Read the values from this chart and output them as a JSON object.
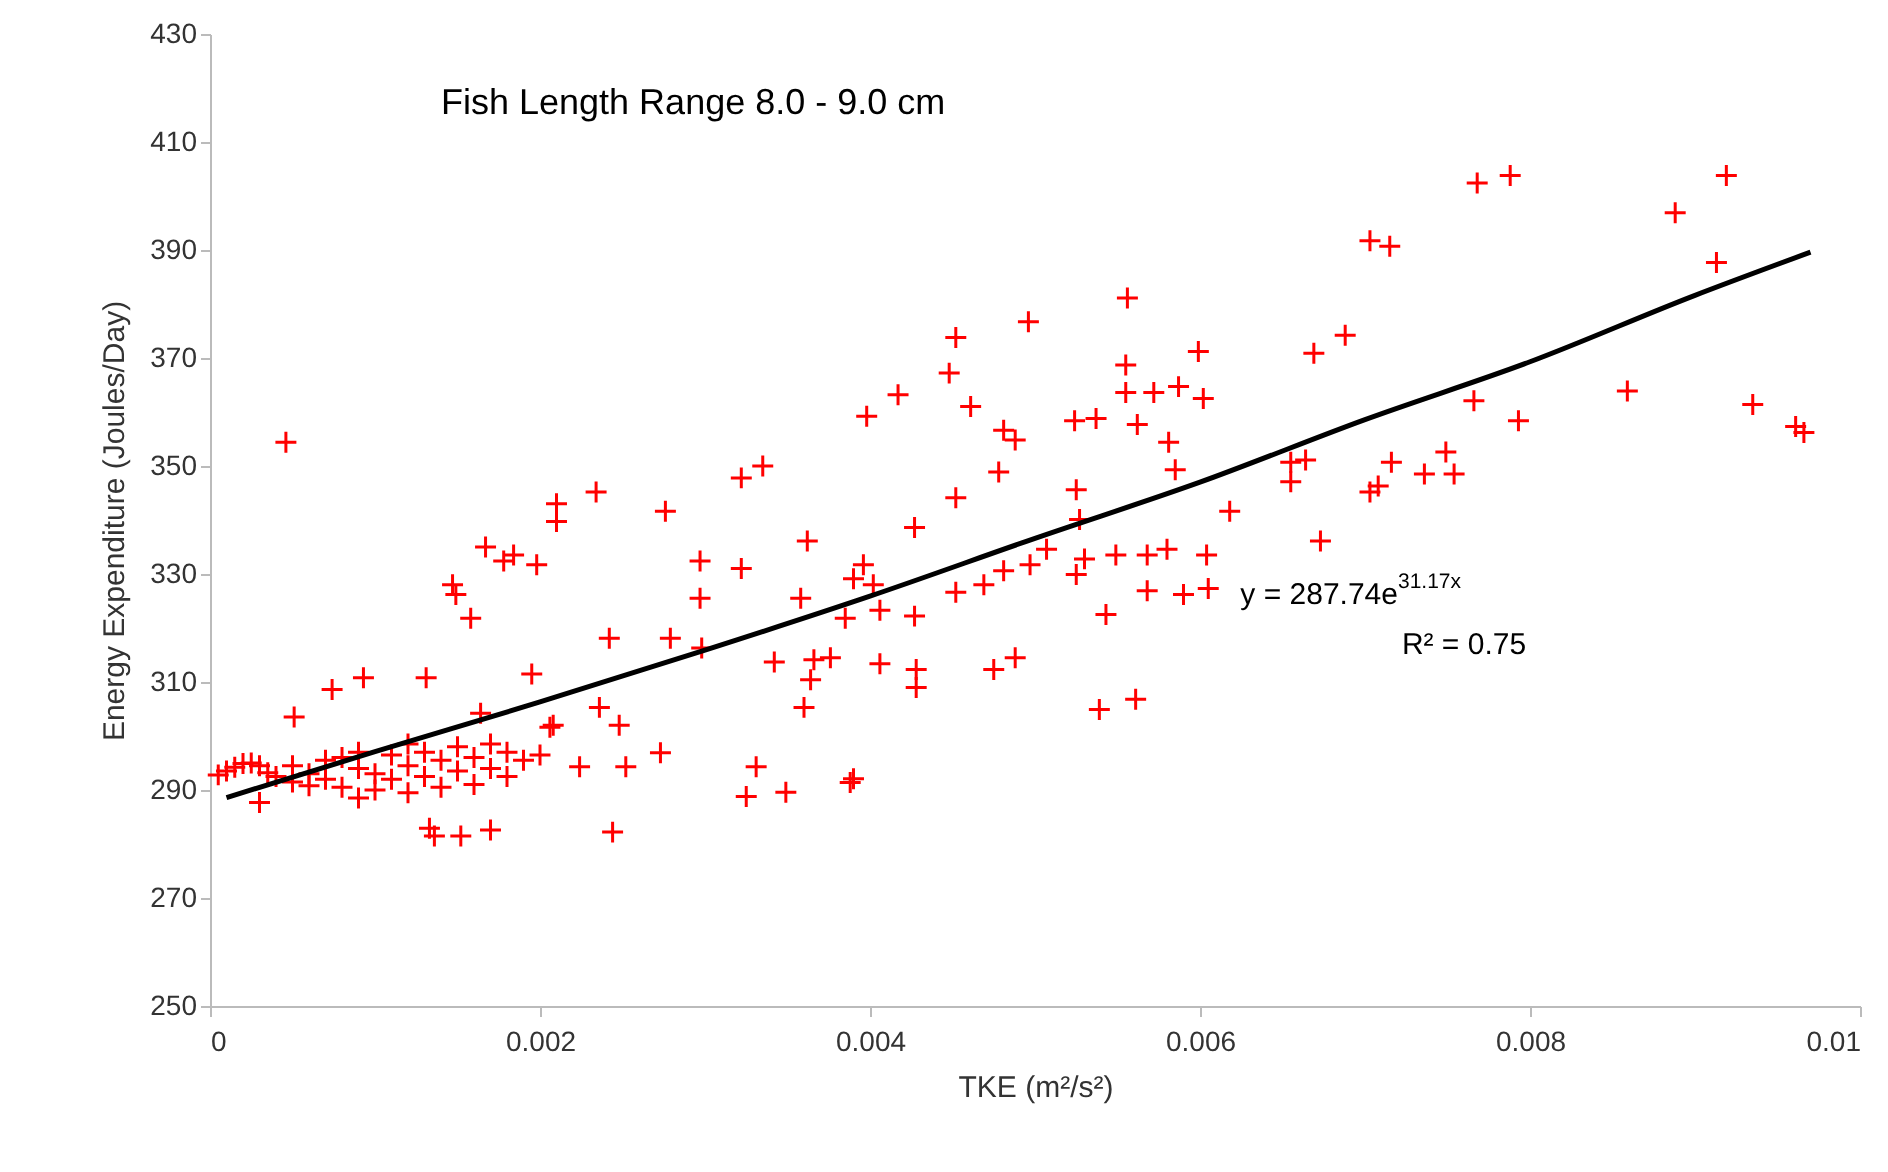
{
  "chart_data": {
    "type": "scatter",
    "xlabel": "TKE (m²/s²)",
    "ylabel": "Energy Expenditure (Joules/Day)",
    "xlim": [
      0,
      0.01
    ],
    "ylim": [
      250,
      430
    ],
    "xticks": [
      0,
      0.002,
      0.004,
      0.006,
      0.008,
      0.01
    ],
    "yticks": [
      250,
      270,
      290,
      310,
      330,
      350,
      370,
      390,
      410,
      430
    ],
    "grid": false,
    "marker": "cross",
    "annotations": [
      "Fish Length Range  8.0 - 9.0 cm",
      "y = 287.74e$^{31.17x}$",
      "R² = 0.75"
    ],
    "series": [
      {
        "color": "#ff0000",
        "x": [
          0.00768,
          0.00788,
          0.00703,
          0.00715,
          0.00888,
          0.00919,
          0.00913,
          0.00669,
          0.00688,
          0.00766,
          0.00793,
          0.00859,
          0.00935,
          0.00966,
          0.00961,
          0.00655,
          0.00655,
          0.00664,
          0.00716,
          0.00749,
          0.00736,
          0.00754,
          0.00703,
          0.00708,
          0.00556,
          0.00496,
          0.00452,
          0.00448,
          0.00417,
          0.00398,
          0.00461,
          0.00481,
          0.00488,
          0.00478,
          0.00452,
          0.00427,
          0.00525,
          0.00527,
          0.00524,
          0.00537,
          0.00555,
          0.00555,
          0.00572,
          0.00587,
          0.00602,
          0.00562,
          0.00581,
          0.00585,
          0.00599,
          0.00618,
          0.00673,
          0.00396,
          0.00385,
          0.00406,
          0.00427,
          0.00406,
          0.00428,
          0.00428,
          0.00475,
          0.00488,
          0.00452,
          0.00469,
          0.00481,
          0.00497,
          0.00507,
          0.00525,
          0.0053,
          0.00549,
          0.00568,
          0.0058,
          0.00604,
          0.00568,
          0.0059,
          0.00605,
          0.00543,
          0.00539,
          0.00561,
          0.0039,
          0.00335,
          0.00322,
          0.00234,
          0.00276,
          0.0021,
          0.0021,
          0.00167,
          0.00184,
          0.00198,
          0.00178,
          0.00147,
          0.00149,
          0.00158,
          0.00297,
          0.00322,
          0.00297,
          0.00358,
          0.00362,
          0.0039,
          0.00402,
          0.00242,
          0.00279,
          0.00298,
          0.00342,
          0.00366,
          0.00376,
          0.00364,
          0.0036,
          0.00093,
          0.00131,
          0.00195,
          0.00236,
          0.00248,
          0.00208,
          0.00164,
          0.00273,
          0.00224,
          0.00252,
          0.00331,
          0.00325,
          0.00349,
          0.00388,
          0.00244,
          0.0017,
          0.00152,
          0.00136,
          0.00133,
          0.00051,
          0.00074,
          0.00206,
          0.0003,
          0.00046,
          5e-05,
          0.0001,
          0.00015,
          0.0002,
          0.00025,
          0.0003,
          0.00035,
          0.0004,
          0.0005,
          0.0005,
          0.0006,
          0.0006,
          0.0007,
          0.0007,
          0.0008,
          0.0008,
          0.0009,
          0.0009,
          0.001,
          0.001,
          0.0011,
          0.0011,
          0.0012,
          0.0012,
          0.0013,
          0.0013,
          0.0014,
          0.0014,
          0.0015,
          0.0015,
          0.0016,
          0.0016,
          0.0017,
          0.0017,
          0.0018,
          0.0018,
          0.0019,
          0.002,
          0.0012,
          0.0009
        ],
        "values": [
          402.4,
          403.8,
          391.7,
          390.7,
          396.9,
          403.8,
          387.7,
          370.9,
          374.2,
          362.1,
          358.4,
          363.9,
          361.4,
          356.2,
          357.3,
          350.7,
          347.1,
          351.1,
          350.7,
          352.6,
          348.5,
          348.5,
          345.2,
          346.3,
          381.1,
          376.7,
          373.8,
          367.2,
          363.2,
          359.2,
          361,
          356.6,
          354.8,
          348.9,
          344.1,
          338.6,
          345.6,
          340.1,
          358.4,
          358.8,
          368.7,
          363.6,
          363.6,
          364.7,
          362.5,
          357.7,
          354.4,
          349.3,
          371.2,
          341.6,
          336.1,
          331.7,
          321.8,
          323.3,
          322.2,
          313.4,
          312.3,
          309,
          312.3,
          314.5,
          326.6,
          328,
          330.6,
          331.7,
          334.6,
          329.9,
          332.8,
          333.5,
          333.5,
          334.6,
          333.5,
          326.9,
          326.2,
          327.3,
          322.5,
          304.9,
          306.8,
          292.1,
          350,
          347.8,
          345.2,
          341.6,
          343,
          339.7,
          335,
          333.5,
          331.7,
          332.4,
          328,
          326.2,
          321.8,
          332.4,
          331,
          325.5,
          325.5,
          336.1,
          329.1,
          328,
          318.1,
          318.1,
          316.3,
          313.7,
          314.1,
          314.5,
          310.4,
          305.3,
          310.8,
          310.8,
          311.5,
          305.3,
          302,
          302,
          304.2,
          296.9,
          294.3,
          294.3,
          294.3,
          288.8,
          289.6,
          291.4,
          282.2,
          282.6,
          281.5,
          281.5,
          282.9,
          303.5,
          308.6,
          301.6,
          287.7,
          354.4,
          292.8,
          293.5,
          294.2,
          294.9,
          295,
          294.5,
          293.2,
          292.5,
          291.5,
          294.5,
          293,
          290.8,
          295.5,
          292,
          296,
          290.5,
          294,
          297,
          293,
          290,
          296.5,
          292,
          294.5,
          289.5,
          297,
          292.5,
          295.5,
          290.5,
          298,
          293.5,
          296,
          291,
          298.5,
          294,
          297,
          292.5,
          295.5,
          296.5,
          298.5,
          288.5
        ]
      },
      {
        "type": "line",
        "color": "#000000",
        "marker": "none",
        "x": [
          0.0001,
          0.001,
          0.002,
          0.003,
          0.004,
          0.005,
          0.006,
          0.007,
          0.008,
          0.009,
          0.0097
        ],
        "values": [
          288.6,
          297.1,
          306.3,
          315.9,
          325.9,
          336.6,
          347,
          358.6,
          369.3,
          381.6,
          389.6
        ]
      }
    ]
  }
}
